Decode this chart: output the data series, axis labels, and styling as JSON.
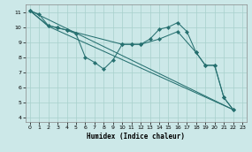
{
  "xlabel": "Humidex (Indice chaleur)",
  "bg_color": "#cce8e8",
  "grid_color": "#a8d0cc",
  "line_color": "#267070",
  "xlim": [
    -0.5,
    23.5
  ],
  "ylim": [
    3.7,
    11.5
  ],
  "xticks": [
    0,
    1,
    2,
    3,
    4,
    5,
    6,
    7,
    8,
    9,
    10,
    11,
    12,
    13,
    14,
    15,
    16,
    17,
    18,
    19,
    20,
    21,
    22,
    23
  ],
  "yticks": [
    4,
    5,
    6,
    7,
    8,
    9,
    10,
    11
  ],
  "lines": [
    {
      "x": [
        0,
        1,
        2,
        3,
        4,
        5,
        6,
        7,
        8,
        9,
        10,
        11,
        12,
        13,
        14,
        15,
        16,
        17,
        18,
        19,
        20,
        21,
        22
      ],
      "y": [
        11.1,
        10.85,
        10.1,
        9.95,
        9.8,
        9.55,
        8.0,
        7.65,
        7.2,
        7.8,
        8.85,
        8.85,
        8.85,
        9.2,
        9.85,
        10.0,
        10.3,
        9.7,
        8.3,
        7.45,
        7.45,
        5.3,
        4.5
      ],
      "markers": true
    },
    {
      "x": [
        0,
        2,
        3,
        4,
        10,
        11,
        12,
        14,
        16,
        18,
        19,
        20,
        21,
        22
      ],
      "y": [
        11.1,
        10.1,
        9.95,
        9.8,
        8.85,
        8.85,
        8.85,
        9.2,
        9.7,
        8.3,
        7.45,
        7.45,
        5.3,
        4.5
      ],
      "markers": true
    },
    {
      "x": [
        0,
        2,
        22
      ],
      "y": [
        11.1,
        10.05,
        4.5
      ],
      "markers": false
    },
    {
      "x": [
        0,
        22
      ],
      "y": [
        11.1,
        4.5
      ],
      "markers": false
    }
  ]
}
